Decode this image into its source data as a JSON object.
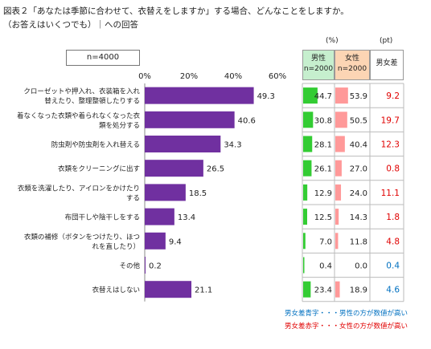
{
  "title_line1": "図表２「あなたは季節に合わせて、衣替えをしますか」する場合、どんなことをしますか。",
  "title_line2": "（お答えはいくつでも）｜への回答",
  "sample_label": "n=4000",
  "unit_pct": "(%)",
  "unit_pt": "(pt)",
  "headers": {
    "male": "男性",
    "male_n": "n=2000",
    "female": "女性",
    "female_n": "n=2000",
    "diff": "男女差"
  },
  "legend": {
    "male_higher": "男女差青字・・・男性の方が数値が高い",
    "female_higher": "男女差赤字・・・女性の方が数値が高い"
  },
  "colors": {
    "bar": "#7030a0",
    "male_bar": "#33cc33",
    "female_bar": "#ff9999",
    "male_header": "#c6efce",
    "female_header": "#fcd5b4",
    "diff_male": "#0070c0",
    "diff_female": "#e00000"
  },
  "chart_data": {
    "type": "bar",
    "orientation": "horizontal",
    "xlim": [
      0,
      60
    ],
    "ticks": [
      "0%",
      "20%",
      "40%",
      "60%"
    ],
    "tick_values": [
      0,
      20,
      40,
      60
    ],
    "categories": [
      [
        "クローゼットや押入れ、衣装箱を入れ",
        "替えたり、整理整頓したりする"
      ],
      [
        "着なくなった衣類や着られなくなった衣",
        "類を処分する"
      ],
      [
        "防虫剤や防虫剤を入れ替える"
      ],
      [
        "衣類をクリーニングに出す"
      ],
      [
        "衣類を洗濯したり、アイロンをかけたり",
        "する"
      ],
      [
        "布団干しや陰干しをする"
      ],
      [
        "衣類の補修（ボタンをつけたり、ほつ",
        "れを直したり）"
      ],
      [
        "その他"
      ],
      [
        "衣替えはしない"
      ]
    ],
    "values": [
      49.3,
      40.6,
      34.3,
      26.5,
      18.5,
      13.4,
      9.4,
      0.2,
      21.1
    ],
    "value_labels": [
      "49.3",
      "40.6",
      "34.3",
      "26.5",
      "18.5",
      "13.4",
      "9.4",
      "0.2",
      "21.1"
    ],
    "male": [
      44.7,
      30.8,
      28.1,
      26.1,
      12.9,
      12.5,
      7.0,
      0.4,
      23.4
    ],
    "male_labels": [
      "44.7",
      "30.8",
      "28.1",
      "26.1",
      "12.9",
      "12.5",
      "7.0",
      "0.4",
      "23.4"
    ],
    "female": [
      53.9,
      50.5,
      40.4,
      27.0,
      24.0,
      14.3,
      11.8,
      0.0,
      18.9
    ],
    "female_labels": [
      "53.9",
      "50.5",
      "40.4",
      "27.0",
      "24.0",
      "14.3",
      "11.8",
      "0.0",
      "18.9"
    ],
    "diff": [
      9.2,
      19.7,
      12.3,
      0.8,
      11.1,
      1.8,
      4.8,
      0.4,
      4.6
    ],
    "diff_labels": [
      "9.2",
      "19.7",
      "12.3",
      "0.8",
      "11.1",
      "1.8",
      "4.8",
      "0.4",
      "4.6"
    ],
    "diff_higher": [
      "female",
      "female",
      "female",
      "female",
      "female",
      "female",
      "female",
      "male",
      "male"
    ]
  }
}
